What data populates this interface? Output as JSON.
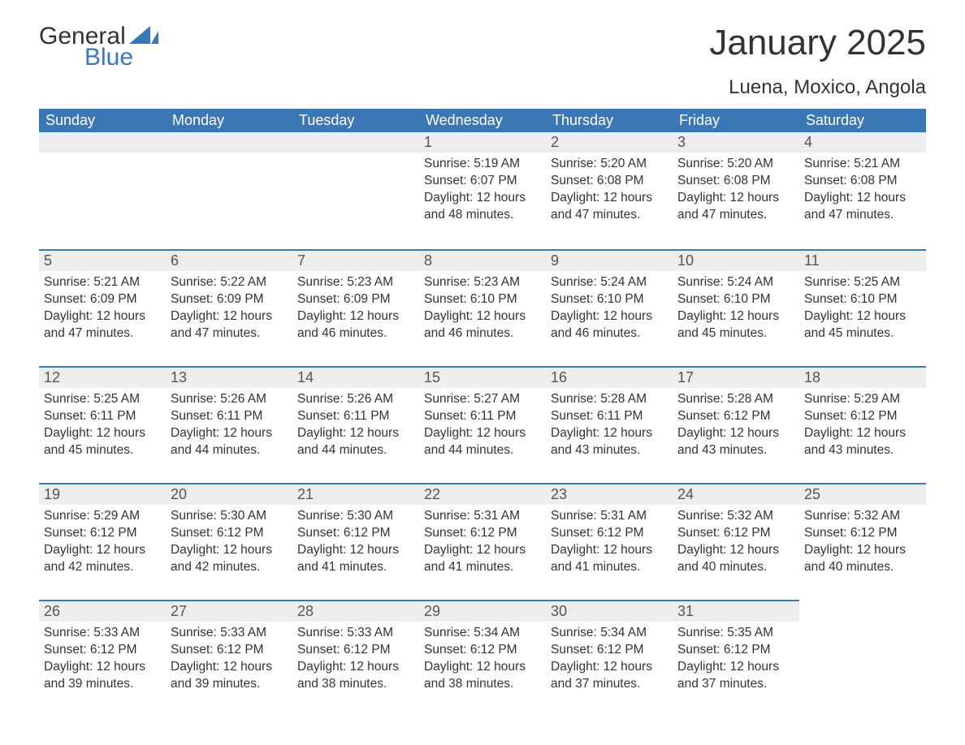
{
  "brand": {
    "general": "General",
    "blue": "Blue"
  },
  "title": "January 2025",
  "subtitle": "Luena, Moxico, Angola",
  "colors": {
    "header_bg": "#3b76b5",
    "header_text": "#ffffff",
    "daynum_bg": "#ededed",
    "rule": "#3b76b5",
    "body_text": "#333333",
    "page_bg": "#ffffff"
  },
  "typography": {
    "title_fontsize": 44,
    "subtitle_fontsize": 24,
    "weekday_fontsize": 18,
    "daynum_fontsize": 18,
    "body_fontsize": 15.5
  },
  "weekdays": [
    "Sunday",
    "Monday",
    "Tuesday",
    "Wednesday",
    "Thursday",
    "Friday",
    "Saturday"
  ],
  "labels": {
    "sunrise": "Sunrise:",
    "sunset": "Sunset:",
    "daylight": "Daylight:"
  },
  "weeks": [
    [
      null,
      null,
      null,
      {
        "day": "1",
        "sunrise": "5:19 AM",
        "sunset": "6:07 PM",
        "daylight": "12 hours and 48 minutes."
      },
      {
        "day": "2",
        "sunrise": "5:20 AM",
        "sunset": "6:08 PM",
        "daylight": "12 hours and 47 minutes."
      },
      {
        "day": "3",
        "sunrise": "5:20 AM",
        "sunset": "6:08 PM",
        "daylight": "12 hours and 47 minutes."
      },
      {
        "day": "4",
        "sunrise": "5:21 AM",
        "sunset": "6:08 PM",
        "daylight": "12 hours and 47 minutes."
      }
    ],
    [
      {
        "day": "5",
        "sunrise": "5:21 AM",
        "sunset": "6:09 PM",
        "daylight": "12 hours and 47 minutes."
      },
      {
        "day": "6",
        "sunrise": "5:22 AM",
        "sunset": "6:09 PM",
        "daylight": "12 hours and 47 minutes."
      },
      {
        "day": "7",
        "sunrise": "5:23 AM",
        "sunset": "6:09 PM",
        "daylight": "12 hours and 46 minutes."
      },
      {
        "day": "8",
        "sunrise": "5:23 AM",
        "sunset": "6:10 PM",
        "daylight": "12 hours and 46 minutes."
      },
      {
        "day": "9",
        "sunrise": "5:24 AM",
        "sunset": "6:10 PM",
        "daylight": "12 hours and 46 minutes."
      },
      {
        "day": "10",
        "sunrise": "5:24 AM",
        "sunset": "6:10 PM",
        "daylight": "12 hours and 45 minutes."
      },
      {
        "day": "11",
        "sunrise": "5:25 AM",
        "sunset": "6:10 PM",
        "daylight": "12 hours and 45 minutes."
      }
    ],
    [
      {
        "day": "12",
        "sunrise": "5:25 AM",
        "sunset": "6:11 PM",
        "daylight": "12 hours and 45 minutes."
      },
      {
        "day": "13",
        "sunrise": "5:26 AM",
        "sunset": "6:11 PM",
        "daylight": "12 hours and 44 minutes."
      },
      {
        "day": "14",
        "sunrise": "5:26 AM",
        "sunset": "6:11 PM",
        "daylight": "12 hours and 44 minutes."
      },
      {
        "day": "15",
        "sunrise": "5:27 AM",
        "sunset": "6:11 PM",
        "daylight": "12 hours and 44 minutes."
      },
      {
        "day": "16",
        "sunrise": "5:28 AM",
        "sunset": "6:11 PM",
        "daylight": "12 hours and 43 minutes."
      },
      {
        "day": "17",
        "sunrise": "5:28 AM",
        "sunset": "6:12 PM",
        "daylight": "12 hours and 43 minutes."
      },
      {
        "day": "18",
        "sunrise": "5:29 AM",
        "sunset": "6:12 PM",
        "daylight": "12 hours and 43 minutes."
      }
    ],
    [
      {
        "day": "19",
        "sunrise": "5:29 AM",
        "sunset": "6:12 PM",
        "daylight": "12 hours and 42 minutes."
      },
      {
        "day": "20",
        "sunrise": "5:30 AM",
        "sunset": "6:12 PM",
        "daylight": "12 hours and 42 minutes."
      },
      {
        "day": "21",
        "sunrise": "5:30 AM",
        "sunset": "6:12 PM",
        "daylight": "12 hours and 41 minutes."
      },
      {
        "day": "22",
        "sunrise": "5:31 AM",
        "sunset": "6:12 PM",
        "daylight": "12 hours and 41 minutes."
      },
      {
        "day": "23",
        "sunrise": "5:31 AM",
        "sunset": "6:12 PM",
        "daylight": "12 hours and 41 minutes."
      },
      {
        "day": "24",
        "sunrise": "5:32 AM",
        "sunset": "6:12 PM",
        "daylight": "12 hours and 40 minutes."
      },
      {
        "day": "25",
        "sunrise": "5:32 AM",
        "sunset": "6:12 PM",
        "daylight": "12 hours and 40 minutes."
      }
    ],
    [
      {
        "day": "26",
        "sunrise": "5:33 AM",
        "sunset": "6:12 PM",
        "daylight": "12 hours and 39 minutes."
      },
      {
        "day": "27",
        "sunrise": "5:33 AM",
        "sunset": "6:12 PM",
        "daylight": "12 hours and 39 minutes."
      },
      {
        "day": "28",
        "sunrise": "5:33 AM",
        "sunset": "6:12 PM",
        "daylight": "12 hours and 38 minutes."
      },
      {
        "day": "29",
        "sunrise": "5:34 AM",
        "sunset": "6:12 PM",
        "daylight": "12 hours and 38 minutes."
      },
      {
        "day": "30",
        "sunrise": "5:34 AM",
        "sunset": "6:12 PM",
        "daylight": "12 hours and 37 minutes."
      },
      {
        "day": "31",
        "sunrise": "5:35 AM",
        "sunset": "6:12 PM",
        "daylight": "12 hours and 37 minutes."
      },
      null
    ]
  ]
}
